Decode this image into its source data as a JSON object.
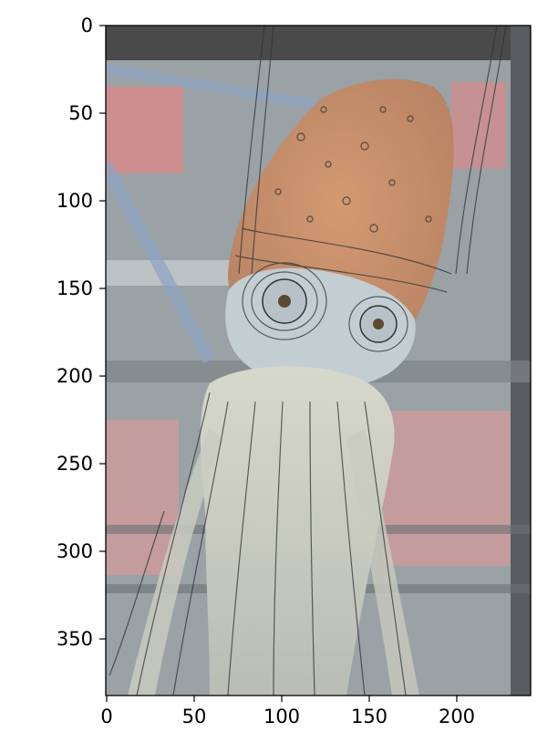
{
  "figure": {
    "background": "#ffffff"
  },
  "image": {
    "description_tags": [
      "squid",
      "contour-overlay"
    ],
    "colors": {
      "top_band": "#4a4a4a",
      "right_band": "#5a5d5f",
      "background_gray": "#9aa2a6",
      "head_orange": "#c98a62",
      "eye_ring": "#c3ced3",
      "tentacle_white": "#d4d6cb",
      "sign_red": "#d98a8a",
      "contour_line": "#2f3536"
    }
  },
  "axes": {
    "x_ticks": [
      "0",
      "50",
      "100",
      "150",
      "200"
    ],
    "y_ticks": [
      "0",
      "50",
      "100",
      "150",
      "200",
      "250",
      "300",
      "350"
    ]
  }
}
